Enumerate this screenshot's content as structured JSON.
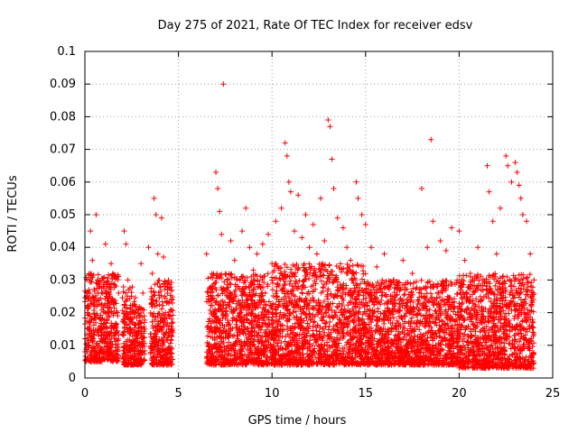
{
  "chart_data": {
    "type": "scatter",
    "title": "Day 275 of 2021, Rate Of TEC Index for receiver edsv",
    "xlabel": "GPS time / hours",
    "ylabel": "ROTI / TECUs",
    "xlim": [
      0,
      25
    ],
    "ylim": [
      0,
      0.1
    ],
    "xticks": [
      0,
      5,
      10,
      15,
      20,
      25
    ],
    "xtick_labels": [
      "0",
      "5",
      "10",
      "15",
      "20",
      "25"
    ],
    "yticks": [
      0,
      0.01,
      0.02,
      0.03,
      0.04,
      0.05,
      0.06,
      0.07,
      0.08,
      0.09,
      0.1
    ],
    "ytick_labels": [
      "0",
      "0.01",
      "0.02",
      "0.03",
      "0.04",
      "0.05",
      "0.06",
      "0.07",
      "0.08",
      "0.09",
      "0.1"
    ],
    "grid": true,
    "marker": "+",
    "color": "#ff0000",
    "series": [
      {
        "points": [
          [
            0.0,
            0.012
          ],
          [
            0.1,
            0.025
          ],
          [
            0.2,
            0.015
          ],
          [
            0.3,
            0.045
          ],
          [
            0.4,
            0.036
          ],
          [
            0.5,
            0.022
          ],
          [
            0.6,
            0.05
          ],
          [
            0.7,
            0.03
          ],
          [
            0.8,
            0.018
          ],
          [
            0.9,
            0.012
          ],
          [
            1.0,
            0.028
          ],
          [
            1.1,
            0.041
          ],
          [
            1.2,
            0.02
          ],
          [
            1.3,
            0.009
          ],
          [
            1.4,
            0.035
          ],
          [
            1.5,
            0.024
          ],
          [
            1.6,
            0.031
          ],
          [
            1.7,
            0.014
          ],
          [
            1.8,
            0.026
          ],
          [
            2.1,
            0.045
          ],
          [
            2.2,
            0.041
          ],
          [
            2.3,
            0.03
          ],
          [
            2.4,
            0.018
          ],
          [
            2.5,
            0.01
          ],
          [
            2.7,
            0.022
          ],
          [
            2.8,
            0.012
          ],
          [
            3.0,
            0.035
          ],
          [
            3.1,
            0.026
          ],
          [
            3.2,
            0.015
          ],
          [
            3.4,
            0.04
          ],
          [
            3.6,
            0.032
          ],
          [
            3.7,
            0.055
          ],
          [
            3.8,
            0.05
          ],
          [
            3.9,
            0.038
          ],
          [
            4.0,
            0.028
          ],
          [
            4.1,
            0.049
          ],
          [
            4.2,
            0.037
          ],
          [
            4.3,
            0.02
          ],
          [
            4.4,
            0.029
          ],
          [
            4.5,
            0.016
          ],
          [
            6.5,
            0.038
          ],
          [
            6.6,
            0.025
          ],
          [
            6.8,
            0.014
          ],
          [
            7.0,
            0.063
          ],
          [
            7.1,
            0.058
          ],
          [
            7.2,
            0.051
          ],
          [
            7.3,
            0.044
          ],
          [
            7.4,
            0.09
          ],
          [
            7.6,
            0.03
          ],
          [
            7.8,
            0.042
          ],
          [
            8.0,
            0.036
          ],
          [
            8.2,
            0.028
          ],
          [
            8.4,
            0.045
          ],
          [
            8.6,
            0.052
          ],
          [
            8.8,
            0.04
          ],
          [
            9.0,
            0.033
          ],
          [
            9.2,
            0.038
          ],
          [
            9.5,
            0.041
          ],
          [
            9.8,
            0.044
          ],
          [
            10.0,
            0.035
          ],
          [
            10.2,
            0.048
          ],
          [
            10.5,
            0.052
          ],
          [
            10.7,
            0.072
          ],
          [
            10.8,
            0.068
          ],
          [
            10.9,
            0.06
          ],
          [
            11.0,
            0.057
          ],
          [
            11.2,
            0.045
          ],
          [
            11.4,
            0.056
          ],
          [
            11.6,
            0.043
          ],
          [
            11.8,
            0.05
          ],
          [
            12.0,
            0.04
          ],
          [
            12.2,
            0.047
          ],
          [
            12.4,
            0.038
          ],
          [
            12.6,
            0.055
          ],
          [
            12.8,
            0.042
          ],
          [
            13.0,
            0.079
          ],
          [
            13.1,
            0.077
          ],
          [
            13.2,
            0.067
          ],
          [
            13.3,
            0.058
          ],
          [
            13.5,
            0.049
          ],
          [
            13.8,
            0.046
          ],
          [
            14.0,
            0.04
          ],
          [
            14.2,
            0.036
          ],
          [
            14.5,
            0.06
          ],
          [
            14.6,
            0.055
          ],
          [
            14.8,
            0.05
          ],
          [
            15.0,
            0.047
          ],
          [
            15.3,
            0.04
          ],
          [
            15.6,
            0.034
          ],
          [
            16.0,
            0.038
          ],
          [
            16.5,
            0.03
          ],
          [
            17.0,
            0.036
          ],
          [
            17.5,
            0.032
          ],
          [
            18.0,
            0.058
          ],
          [
            18.3,
            0.04
          ],
          [
            18.5,
            0.073
          ],
          [
            18.6,
            0.048
          ],
          [
            19.0,
            0.042
          ],
          [
            19.3,
            0.039
          ],
          [
            19.6,
            0.046
          ],
          [
            20.0,
            0.045
          ],
          [
            20.3,
            0.036
          ],
          [
            20.6,
            0.032
          ],
          [
            21.0,
            0.04
          ],
          [
            21.5,
            0.065
          ],
          [
            21.6,
            0.057
          ],
          [
            21.8,
            0.048
          ],
          [
            22.0,
            0.038
          ],
          [
            22.2,
            0.052
          ],
          [
            22.5,
            0.068
          ],
          [
            22.6,
            0.065
          ],
          [
            22.8,
            0.06
          ],
          [
            23.0,
            0.066
          ],
          [
            23.1,
            0.063
          ],
          [
            23.2,
            0.059
          ],
          [
            23.3,
            0.055
          ],
          [
            23.4,
            0.05
          ],
          [
            23.6,
            0.048
          ],
          [
            23.8,
            0.038
          ],
          [
            24.0,
            0.03
          ]
        ]
      }
    ],
    "dense_bands": [
      {
        "x": [
          0.0,
          1.8
        ],
        "y": [
          0.005,
          0.032
        ]
      },
      {
        "x": [
          2.0,
          2.7
        ],
        "y": [
          0.004,
          0.028
        ]
      },
      {
        "x": [
          2.7,
          3.2
        ],
        "y": [
          0.004,
          0.022
        ]
      },
      {
        "x": [
          3.5,
          4.7
        ],
        "y": [
          0.004,
          0.03
        ]
      },
      {
        "x": [
          6.5,
          10.0
        ],
        "y": [
          0.004,
          0.032
        ]
      },
      {
        "x": [
          10.0,
          15.0
        ],
        "y": [
          0.004,
          0.035
        ]
      },
      {
        "x": [
          15.0,
          20.0
        ],
        "y": [
          0.004,
          0.03
        ]
      },
      {
        "x": [
          20.0,
          24.0
        ],
        "y": [
          0.003,
          0.032
        ]
      }
    ]
  }
}
